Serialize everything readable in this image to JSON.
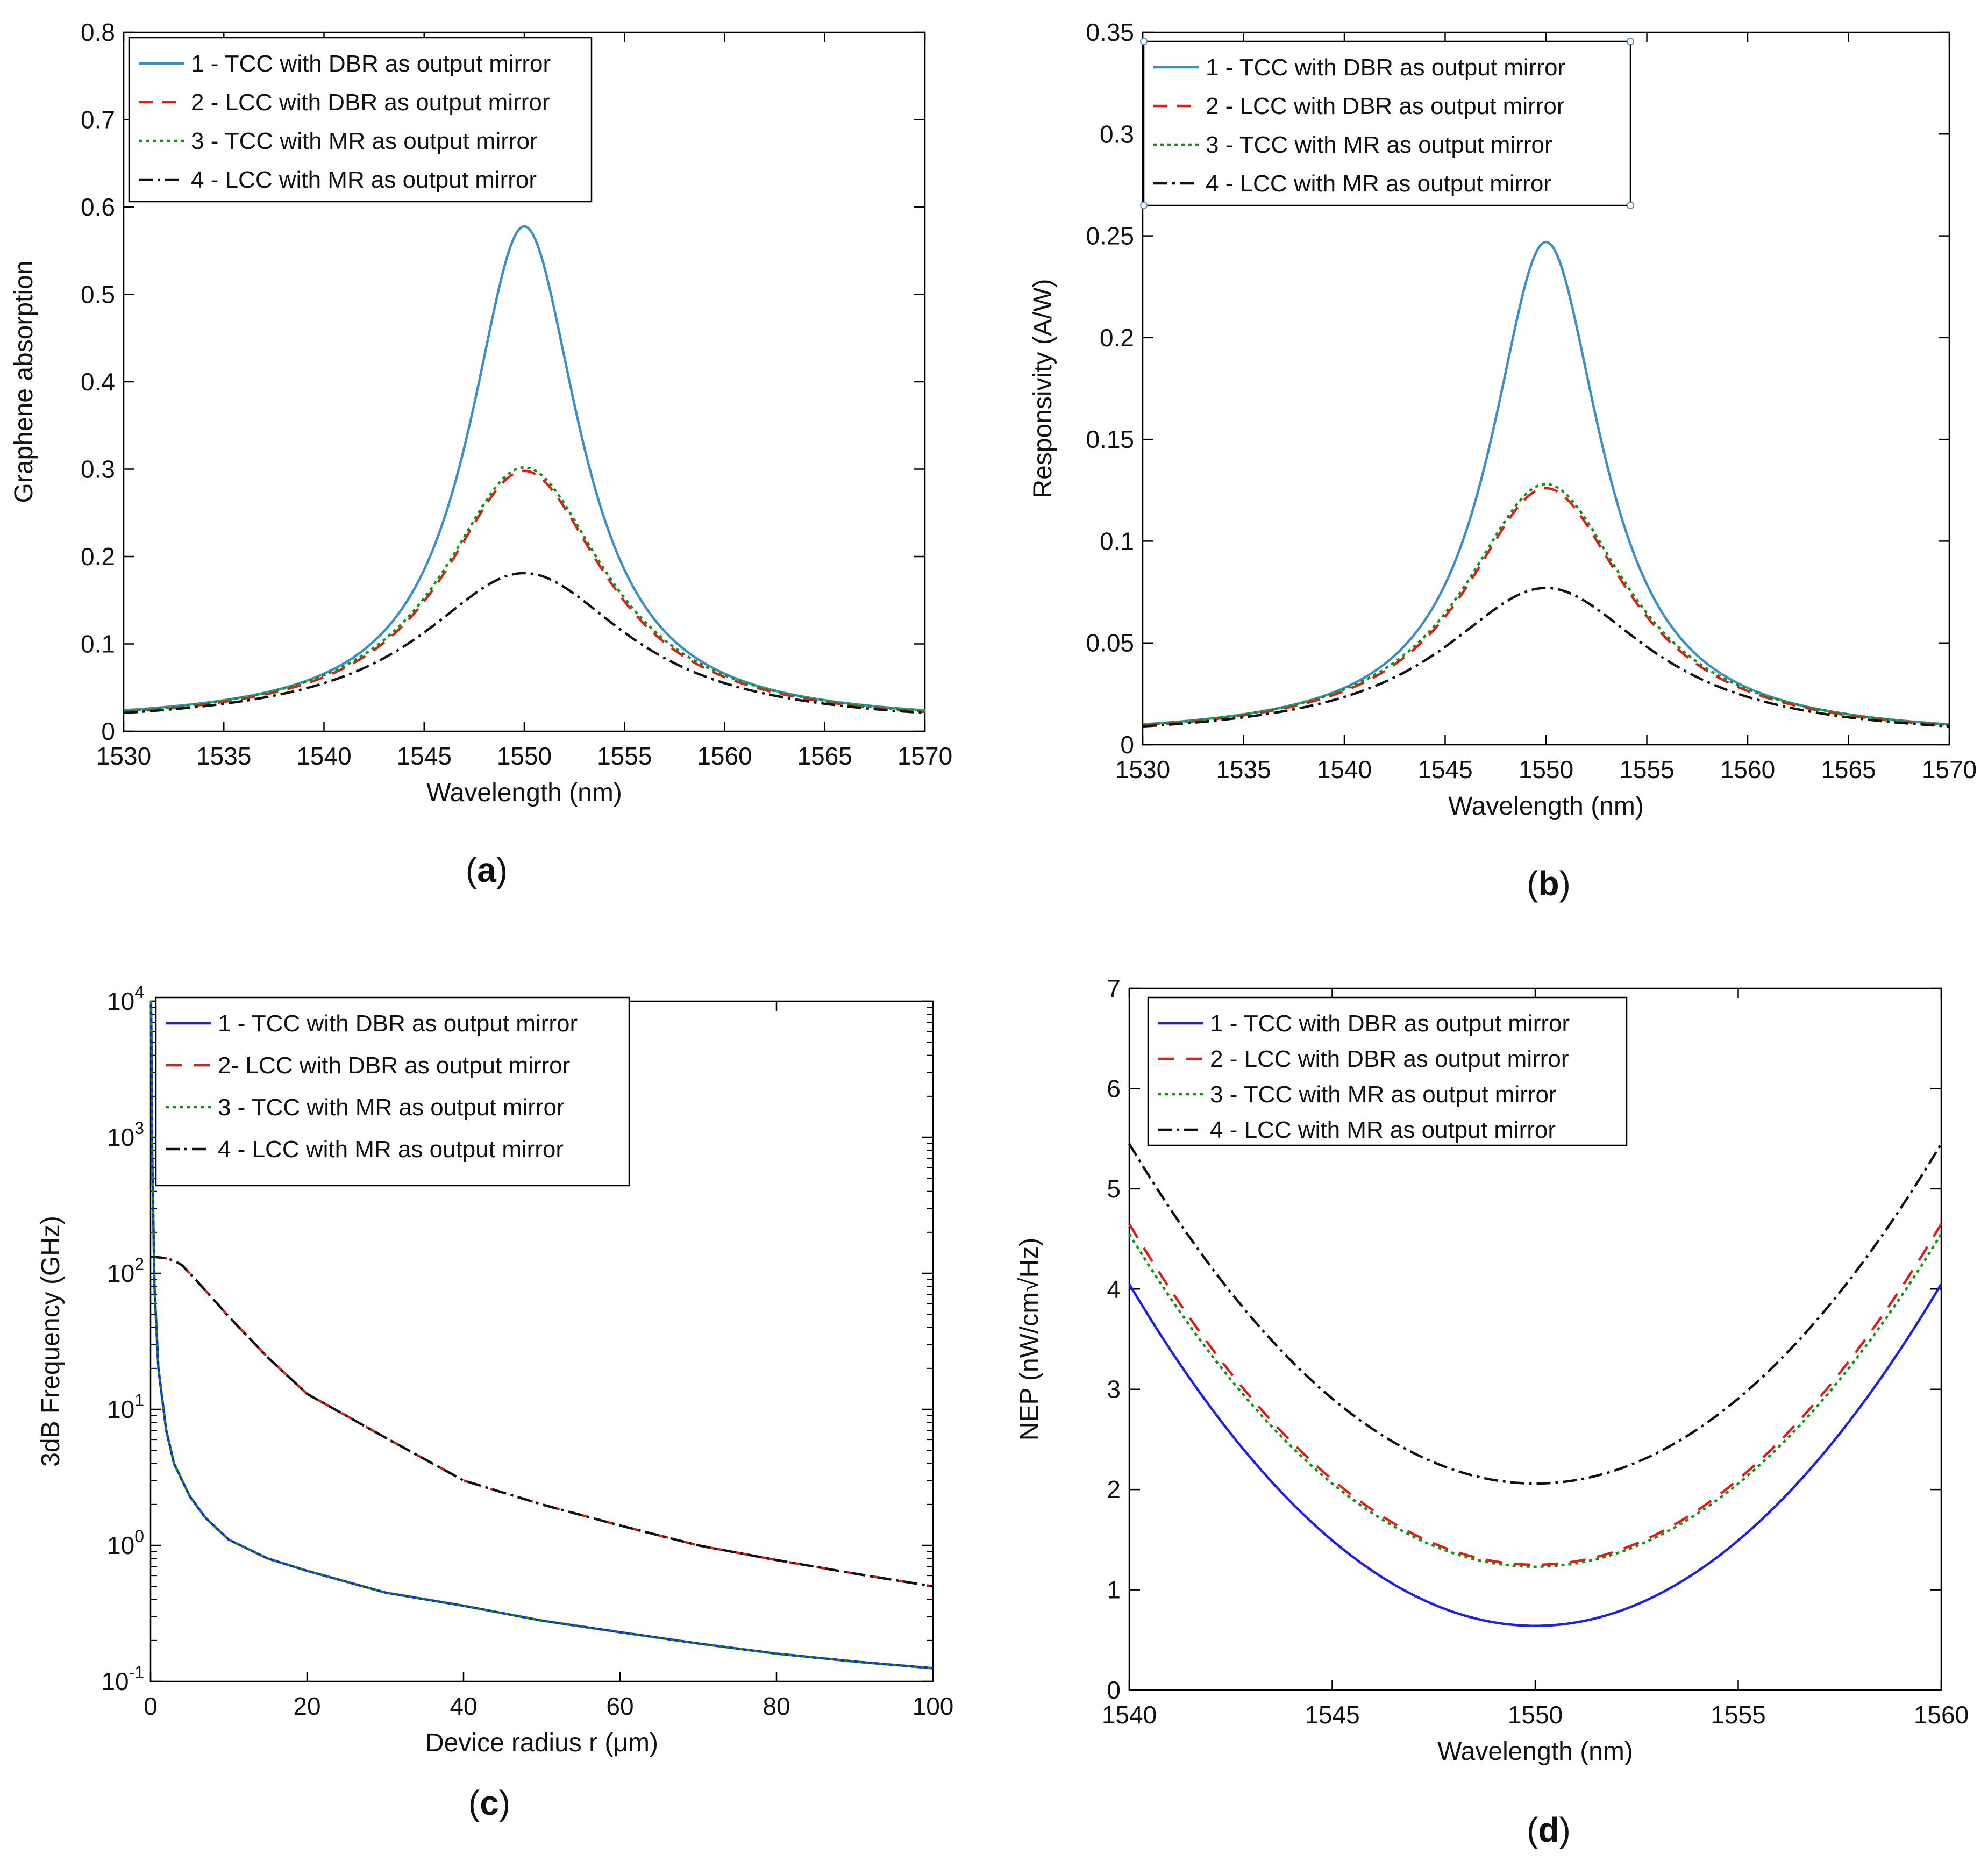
{
  "figure": {
    "panel_labels": [
      "a",
      "b",
      "c",
      "d"
    ]
  },
  "colors": {
    "series1_ab": "#3a8fc6",
    "series1_cd": "#1f1fe6",
    "series2": "#e21a1a",
    "series3": "#109410",
    "series4": "#111111"
  },
  "chart_data": [
    {
      "type": "line",
      "panel": "a",
      "title": "",
      "xlabel": "Wavelength (nm)",
      "ylabel": "Graphene absorption",
      "xlim": [
        1530,
        1570
      ],
      "ylim": [
        0,
        0.8
      ],
      "xticks": [
        1530,
        1535,
        1540,
        1545,
        1550,
        1555,
        1560,
        1565,
        1570
      ],
      "yticks": [
        0,
        0.1,
        0.2,
        0.3,
        0.4,
        0.5,
        0.6,
        0.7,
        0.8
      ],
      "ytick_labels": [
        "0",
        "0.1",
        "0.2",
        "0.3",
        "0.4",
        "0.5",
        "0.6",
        "0.7",
        "0.8"
      ],
      "legend": [
        "1 - TCC with DBR as output mirror",
        "2 - LCC with DBR as output mirror",
        "3 - TCC with MR as  output mirror",
        "4 - LCC with MR  as output mirror"
      ],
      "legend_position": "top-left",
      "curve_model": "lorentzian",
      "series": [
        {
          "name": "1 - TCC with DBR as output mirror",
          "peak_x": 1550,
          "peak_y": 0.578,
          "hwhm": 3.35,
          "edge_y": 0.024
        },
        {
          "name": "2 - LCC with DBR as output mirror",
          "peak_x": 1550,
          "peak_y": 0.298,
          "hwhm": 4.9,
          "edge_y": 0.022
        },
        {
          "name": "3 - TCC with MR as  output mirror",
          "peak_x": 1550,
          "peak_y": 0.302,
          "hwhm": 4.95,
          "edge_y": 0.023
        },
        {
          "name": "4 - LCC with MR  as output mirror",
          "peak_x": 1550,
          "peak_y": 0.181,
          "hwhm": 6.3,
          "edge_y": 0.021
        }
      ]
    },
    {
      "type": "line",
      "panel": "b",
      "title": "",
      "xlabel": "Wavelength (nm)",
      "ylabel": "Responsivity (A/W)",
      "xlim": [
        1530,
        1570
      ],
      "ylim": [
        0,
        0.35
      ],
      "xticks": [
        1530,
        1535,
        1540,
        1545,
        1550,
        1555,
        1560,
        1565,
        1570
      ],
      "yticks": [
        0,
        0.05,
        0.1,
        0.15,
        0.2,
        0.25,
        0.3,
        0.35
      ],
      "ytick_labels": [
        "0",
        "0.05",
        "0.1",
        "0.15",
        "0.2",
        "0.25",
        "0.3",
        "0.35"
      ],
      "legend": [
        "1 - TCC with DBR as output mirror",
        "2 - LCC with DBR as output mirror",
        "3 - TCC with MR as  output mirror",
        "4 - LCC with MR as  output mirror"
      ],
      "legend_position": "top-left",
      "curve_model": "lorentzian",
      "series": [
        {
          "name": "1 - TCC with DBR as output mirror",
          "peak_x": 1550,
          "peak_y": 0.247,
          "hwhm": 3.35,
          "edge_y": 0.01
        },
        {
          "name": "2 - LCC with DBR as output mirror",
          "peak_x": 1550,
          "peak_y": 0.126,
          "hwhm": 4.9,
          "edge_y": 0.0095
        },
        {
          "name": "3 - TCC with MR as  output mirror",
          "peak_x": 1550,
          "peak_y": 0.128,
          "hwhm": 4.95,
          "edge_y": 0.0098
        },
        {
          "name": "4 - LCC with MR as  output mirror",
          "peak_x": 1550,
          "peak_y": 0.077,
          "hwhm": 6.3,
          "edge_y": 0.009
        }
      ]
    },
    {
      "type": "line",
      "panel": "c",
      "title": "",
      "xlabel": "Device radius r (μm)",
      "ylabel": "3dB Frequency (GHz)",
      "xscale": "linear",
      "yscale": "log",
      "xlim": [
        0,
        100
      ],
      "ylim": [
        0.1,
        10000
      ],
      "xticks": [
        0,
        20,
        40,
        60,
        80,
        100
      ],
      "yticks": [
        0.1,
        1,
        10,
        100,
        1000,
        10000
      ],
      "ytick_exponents": [
        "-1",
        "0",
        "1",
        "2",
        "3",
        "4"
      ],
      "ytick_base": "10",
      "legend": [
        "1 - TCC with DBR as output mirror",
        "2- LCC with DBR as output mirror",
        "3 - TCC with MR as output mirror",
        "4 - LCC with MR as output mirror"
      ],
      "legend_position": "top-right",
      "series": [
        {
          "name": "1 - TCC with DBR as output mirror",
          "x": [
            0.05,
            0.1,
            0.2,
            0.5,
            1,
            2,
            3,
            5,
            7,
            10,
            15,
            20,
            30,
            40,
            50,
            60,
            70,
            80,
            90,
            100
          ],
          "y": [
            10000,
            6000,
            800,
            80,
            20,
            7,
            4,
            2.3,
            1.6,
            1.1,
            0.8,
            0.65,
            0.45,
            0.36,
            0.28,
            0.23,
            0.19,
            0.16,
            0.14,
            0.125
          ]
        },
        {
          "name": "2- LCC with DBR as output mirror",
          "x": [
            0.05,
            0.5,
            1,
            2,
            3,
            4,
            5,
            7,
            10,
            15,
            20,
            30,
            40,
            50,
            60,
            70,
            80,
            90,
            100
          ],
          "y": [
            132,
            132,
            131,
            129,
            124,
            115,
            100,
            75,
            48,
            24,
            13,
            6.2,
            3.0,
            2.0,
            1.4,
            1.0,
            0.78,
            0.62,
            0.5
          ]
        },
        {
          "name": "3 - TCC with MR as output mirror",
          "x": [
            0.05,
            0.1,
            0.2,
            0.5,
            1,
            2,
            3,
            5,
            7,
            10,
            15,
            20,
            30,
            40,
            50,
            60,
            70,
            80,
            90,
            100
          ],
          "y": [
            10000,
            6000,
            800,
            80,
            20,
            7,
            4,
            2.3,
            1.6,
            1.1,
            0.8,
            0.65,
            0.45,
            0.36,
            0.28,
            0.23,
            0.19,
            0.16,
            0.14,
            0.125
          ]
        },
        {
          "name": "4 - LCC with MR as output mirror",
          "x": [
            0.05,
            0.5,
            1,
            2,
            3,
            4,
            5,
            7,
            10,
            15,
            20,
            30,
            40,
            50,
            60,
            70,
            80,
            90,
            100
          ],
          "y": [
            132,
            132,
            131,
            129,
            124,
            115,
            100,
            75,
            48,
            24,
            13,
            6.2,
            3.0,
            2.0,
            1.4,
            1.0,
            0.78,
            0.62,
            0.5
          ]
        }
      ]
    },
    {
      "type": "line",
      "panel": "d",
      "title": "",
      "xlabel": "Wavelength (nm)",
      "ylabel": "NEP (nW/cm√Hz)",
      "xlim": [
        1540,
        1560
      ],
      "ylim": [
        0,
        7
      ],
      "xticks": [
        1540,
        1545,
        1550,
        1555,
        1560
      ],
      "yticks": [
        0,
        1,
        2,
        3,
        4,
        5,
        6,
        7
      ],
      "ytick_labels": [
        "0",
        "1",
        "2",
        "3",
        "4",
        "5",
        "6",
        "7"
      ],
      "legend": [
        "1 - TCC with DBR as output mirror",
        "2 - LCC with DBR as output mirror",
        "3 - TCC with MR as output mirror",
        "4 - LCC with MR as output mirror"
      ],
      "legend_position": "top-left",
      "curve_model": "inverse-lorentzian",
      "series": [
        {
          "name": "1 - TCC with DBR as output mirror",
          "center_x": 1550,
          "min_y": 0.64,
          "edge_y": 4.05
        },
        {
          "name": "2 - LCC with DBR as output mirror",
          "center_x": 1550,
          "min_y": 1.25,
          "edge_y": 4.65
        },
        {
          "name": "3 - TCC with MR as output mirror",
          "center_x": 1550,
          "min_y": 1.23,
          "edge_y": 4.55
        },
        {
          "name": "4 - LCC with MR as output mirror",
          "center_x": 1550,
          "min_y": 2.06,
          "edge_y": 5.45
        }
      ]
    }
  ]
}
